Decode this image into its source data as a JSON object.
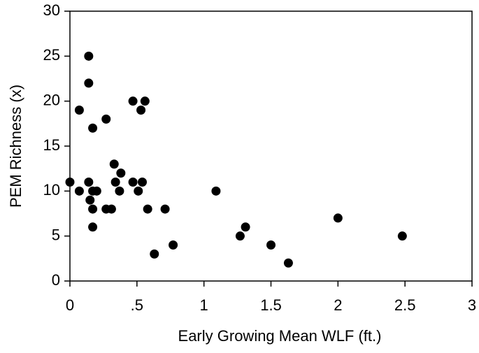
{
  "chart_data": {
    "type": "scatter",
    "x_label": "Early Growing Mean WLF (ft.)",
    "y_label": "PEM Richness (x)",
    "color": "#000000",
    "x": [
      0,
      0.07,
      0.07,
      0.14,
      0.14,
      0.14,
      0.15,
      0.17,
      0.17,
      0.17,
      0.17,
      0.2,
      0.27,
      0.27,
      0.31,
      0.33,
      0.34,
      0.37,
      0.38,
      0.47,
      0.47,
      0.51,
      0.53,
      0.54,
      0.56,
      0.58,
      0.63,
      0.71,
      0.77,
      1.09,
      1.27,
      1.31,
      1.5,
      1.63,
      2.0,
      2.48
    ],
    "values": [
      11,
      19,
      10,
      22,
      25,
      11,
      9,
      10,
      17,
      8,
      6,
      10,
      8,
      18,
      8,
      13,
      11,
      10,
      12,
      20,
      11,
      10,
      19,
      11,
      20,
      8,
      3,
      8,
      4,
      10,
      5,
      6,
      4,
      2,
      7,
      5
    ],
    "xlim": [
      0,
      3
    ],
    "xticks": [
      0,
      {
        "value": 0.5,
        "label": ".5"
      },
      1,
      1.5,
      2,
      2.5,
      3
    ],
    "ylim": [
      0,
      30
    ],
    "yticks": [
      0,
      5,
      10,
      15,
      20,
      25,
      30
    ]
  }
}
